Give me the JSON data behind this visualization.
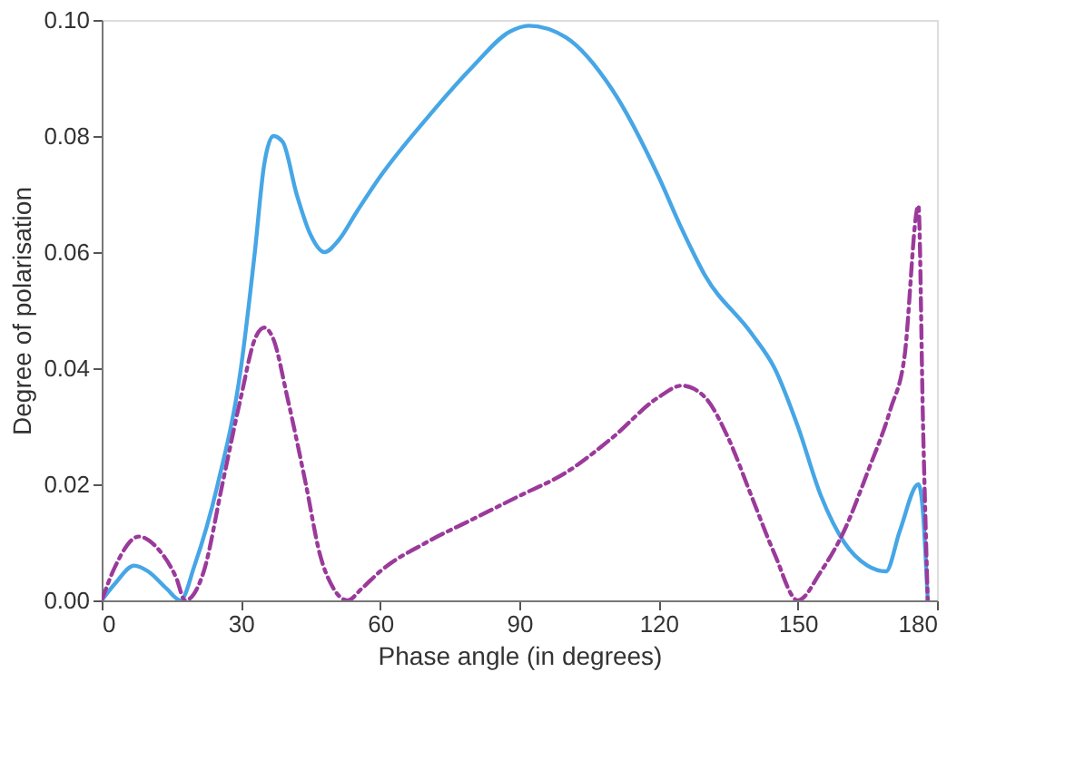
{
  "chart_data": {
    "type": "line",
    "xlabel": "Phase angle (in degrees)",
    "ylabel": "Degree of polarisation",
    "xlim": [
      0,
      180
    ],
    "xticks": [
      0,
      30,
      60,
      90,
      120,
      150,
      180
    ],
    "ylim": [
      0,
      0.1
    ],
    "yticks": [
      {
        "value": 0,
        "label": "0.00"
      },
      {
        "value": 0.02,
        "label": "0.02"
      },
      {
        "value": 0.04,
        "label": "0.04"
      },
      {
        "value": 0.06,
        "label": "0.06"
      },
      {
        "value": 0.08,
        "label": "0.08"
      },
      {
        "value": 0.1,
        "label": "0.10"
      }
    ],
    "grid": false,
    "marker": "none",
    "series": [
      {
        "color": "#46a6e6",
        "line_style": "solid",
        "x": [
          0,
          3,
          7,
          10,
          14,
          17,
          20,
          25,
          30,
          33,
          35,
          37,
          39,
          42,
          45,
          48,
          51,
          55,
          60,
          70,
          80,
          88,
          92,
          100,
          110,
          120,
          125,
          130,
          140,
          145,
          150,
          155,
          160,
          165,
          169,
          172,
          176,
          177,
          178
        ],
        "values": [
          0,
          0.003,
          0.006,
          0.005,
          0.002,
          0,
          0.006,
          0.02,
          0.04,
          0.06,
          0.075,
          0.08,
          0.079,
          0.07,
          0.063,
          0.06,
          0.062,
          0.067,
          0.073,
          0.083,
          0.092,
          0.098,
          0.099,
          0.097,
          0.088,
          0.073,
          0.064,
          0.056,
          0.046,
          0.04,
          0.03,
          0.018,
          0.01,
          0.006,
          0.005,
          0.012,
          0.02,
          0.015,
          0
        ]
      },
      {
        "color": "#9b3a9b",
        "line_style": "dashed",
        "x": [
          0,
          3,
          8,
          12,
          16,
          18,
          22,
          26,
          30,
          33,
          35,
          37,
          40,
          44,
          47,
          50,
          53,
          56,
          60,
          70,
          80,
          90,
          100,
          110,
          120,
          125,
          130,
          135,
          140,
          145,
          150,
          155,
          160,
          165,
          170,
          173,
          176,
          177,
          178
        ],
        "values": [
          0,
          0.006,
          0.011,
          0.009,
          0.004,
          0,
          0.005,
          0.02,
          0.035,
          0.045,
          0.047,
          0.045,
          0.035,
          0.02,
          0.008,
          0.002,
          0,
          0.002,
          0.005,
          0.01,
          0.014,
          0.018,
          0.022,
          0.028,
          0.035,
          0.037,
          0.035,
          0.028,
          0.018,
          0.008,
          0,
          0.005,
          0.012,
          0.022,
          0.033,
          0.042,
          0.068,
          0.03,
          0
        ]
      }
    ]
  }
}
